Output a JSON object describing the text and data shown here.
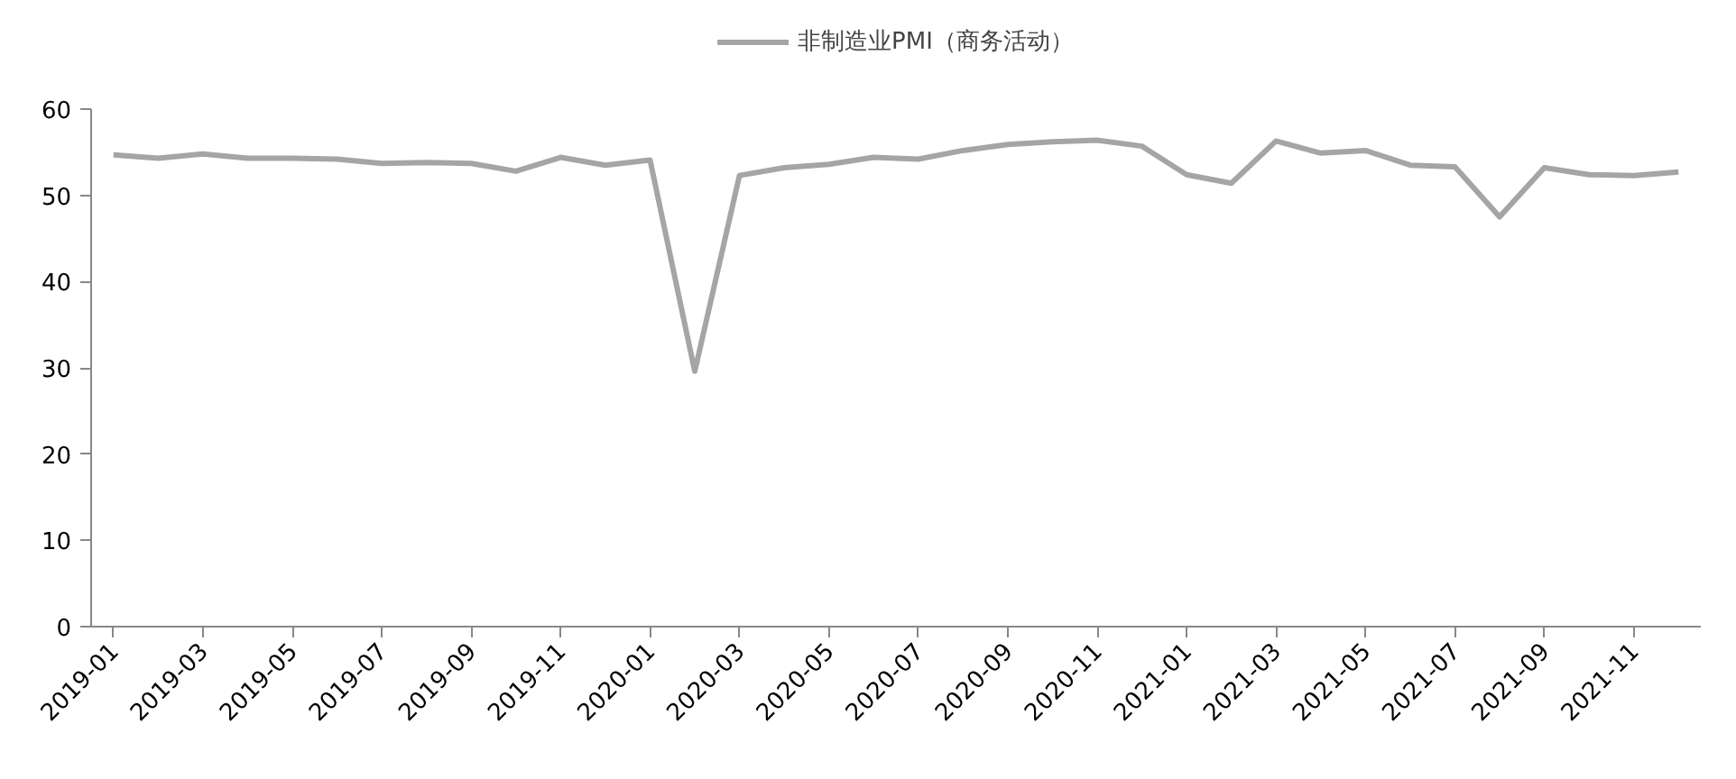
{
  "chart_data": {
    "type": "line",
    "categories": [
      "2019-01",
      null,
      "2019-03",
      null,
      "2019-05",
      null,
      "2019-07",
      null,
      "2019-09",
      null,
      "2019-11",
      null,
      "2020-01",
      null,
      "2020-03",
      null,
      "2020-05",
      null,
      "2020-07",
      null,
      "2020-09",
      null,
      "2020-11",
      null,
      "2021-01",
      null,
      "2021-03",
      null,
      "2021-05",
      null,
      "2021-07",
      null,
      "2021-09",
      null,
      "2021-11",
      null
    ],
    "series": [
      {
        "name": "非制造业PMI（商务活动）",
        "color": "#a5a5a5",
        "values": [
          54.7,
          54.3,
          54.8,
          54.3,
          54.3,
          54.2,
          53.7,
          53.8,
          53.7,
          52.8,
          54.4,
          53.5,
          54.1,
          29.6,
          52.3,
          53.2,
          53.6,
          54.4,
          54.2,
          55.2,
          55.9,
          56.2,
          56.4,
          55.7,
          52.4,
          51.4,
          56.3,
          54.9,
          55.2,
          53.5,
          53.3,
          47.5,
          53.2,
          52.4,
          52.3,
          52.7
        ]
      }
    ],
    "ylim": [
      0,
      60
    ],
    "yticks": [
      0,
      10,
      20,
      30,
      40,
      50,
      60
    ],
    "grid": false,
    "legend": "top",
    "marker": "none",
    "line_style": "solid"
  }
}
